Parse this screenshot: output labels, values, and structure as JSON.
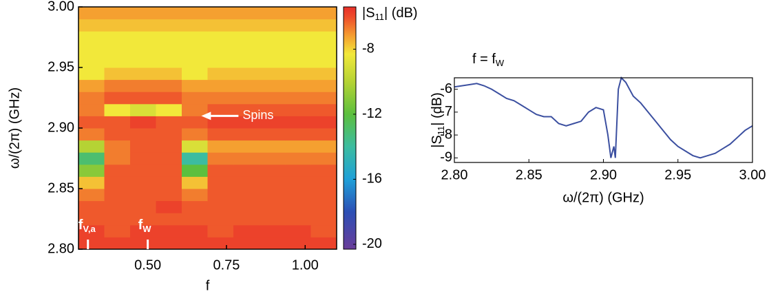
{
  "chart_data": [
    {
      "type": "heatmap",
      "xlabel": "f",
      "ylabel": "ω/(2π) (GHz)",
      "xlim": [
        0.28,
        1.1
      ],
      "ylim": [
        2.8,
        3.0
      ],
      "xticks": [
        {
          "value": 0.5,
          "label": "0.50"
        },
        {
          "value": 0.75,
          "label": "0.75"
        },
        {
          "value": 1.0,
          "label": "1.00"
        }
      ],
      "yticks": [
        {
          "value": 2.8,
          "label": "2.80"
        },
        2.85,
        {
          "value": 2.9,
          "label": "2.90"
        },
        2.95,
        {
          "value": 3.0,
          "label": "3.00"
        }
      ],
      "x_bins": [
        0.28,
        0.362,
        0.444,
        0.526,
        0.608,
        0.69,
        0.772,
        0.854,
        0.936,
        1.018,
        1.1
      ],
      "y_bins": [
        2.8,
        2.81,
        2.82,
        2.83,
        2.84,
        2.85,
        2.86,
        2.87,
        2.88,
        2.89,
        2.9,
        2.91,
        2.92,
        2.93,
        2.94,
        2.95,
        2.96,
        2.97,
        2.98,
        2.99,
        3.0
      ],
      "z": [
        [
          -5.8,
          -5.8,
          -5.8,
          -5.8,
          -5.8,
          -5.8,
          -5.8,
          -5.8,
          -5.8,
          -5.8
        ],
        [
          -5.8,
          -6.2,
          -5.8,
          -5.8,
          -5.8,
          -6.2,
          -5.8,
          -5.8,
          -5.8,
          -6.2
        ],
        [
          -6.2,
          -6.2,
          -6.2,
          -6.2,
          -6.2,
          -6.2,
          -6.2,
          -6.2,
          -6.2,
          -6.2
        ],
        [
          -6.2,
          -6.2,
          -6.2,
          -5.8,
          -6.2,
          -6.2,
          -6.2,
          -6.2,
          -6.2,
          -6.2
        ],
        [
          -6.7,
          -6.2,
          -6.2,
          -6.2,
          -6.7,
          -6.2,
          -6.2,
          -6.2,
          -6.2,
          -6.2
        ],
        [
          -7.7,
          -6.2,
          -6.2,
          -6.2,
          -7.7,
          -6.2,
          -6.2,
          -6.2,
          -6.2,
          -6.2
        ],
        [
          -11,
          -6.2,
          -6.2,
          -6.2,
          -12,
          -6.2,
          -6.2,
          -6.2,
          -6.2,
          -6.2
        ],
        [
          -13,
          -6.7,
          -6.2,
          -6.2,
          -14,
          -6.7,
          -6.7,
          -6.7,
          -6.7,
          -6.7
        ],
        [
          -10,
          -6.7,
          -6.2,
          -6.2,
          -9,
          -7.2,
          -7.2,
          -7.2,
          -7.2,
          -7.2
        ],
        [
          -6.7,
          -6.2,
          -6.2,
          -6.2,
          -6.7,
          -6.2,
          -6.2,
          -6.2,
          -6.2,
          -6.2
        ],
        [
          -6.2,
          -6.2,
          -5.8,
          -6.2,
          -6.2,
          -5.8,
          -5.8,
          -5.8,
          -5.8,
          -5.8
        ],
        [
          -6.7,
          -8.3,
          -9,
          -8.3,
          -6.7,
          -6.2,
          -6.2,
          -6.2,
          -6.2,
          -6.2
        ],
        [
          -6.7,
          -6.2,
          -6.2,
          -6.2,
          -6.7,
          -6.7,
          -6.7,
          -6.7,
          -6.7,
          -6.7
        ],
        [
          -7.2,
          -6.7,
          -6.7,
          -6.7,
          -7.2,
          -7.2,
          -7.2,
          -7.2,
          -7.2,
          -7.2
        ],
        [
          -8.3,
          -7.7,
          -7.7,
          -7.7,
          -8.3,
          -7.7,
          -7.7,
          -7.7,
          -7.7,
          -7.7
        ],
        [
          -8.3,
          -8.3,
          -8.3,
          -8.3,
          -8.3,
          -8.3,
          -8.3,
          -8.3,
          -8.3,
          -8.3
        ],
        [
          -8.3,
          -8.3,
          -8.3,
          -8.3,
          -8.3,
          -8.3,
          -8.3,
          -8.3,
          -8.3,
          -8.3
        ],
        [
          -8.3,
          -8.3,
          -8.3,
          -8.3,
          -8.3,
          -8.3,
          -8.3,
          -8.3,
          -8.3,
          -8.3
        ],
        [
          -7.7,
          -7.7,
          -7.7,
          -7.7,
          -7.7,
          -7.7,
          -7.7,
          -7.7,
          -7.7,
          -7.7
        ],
        [
          -7.2,
          -7.2,
          -7.2,
          -7.2,
          -7.2,
          -7.2,
          -7.2,
          -7.2,
          -7.2,
          -7.2
        ]
      ],
      "clim": [
        -20.3,
        -5.4
      ],
      "colorbar_ticks": [
        -8,
        -12,
        -16,
        -20
      ],
      "colorbar_label": {
        "main": "|S",
        "sub": "11",
        "end": "| (dB)"
      },
      "colormap": [
        [
          -20.3,
          "#6a3d9a"
        ],
        [
          -18,
          "#2c4fb5"
        ],
        [
          -16,
          "#1fa0d8"
        ],
        [
          -14,
          "#3cbca0"
        ],
        [
          -12,
          "#5cbf3e"
        ],
        [
          -10,
          "#b5d334"
        ],
        [
          -8.3,
          "#f2e83a"
        ],
        [
          -7.2,
          "#f5a030"
        ],
        [
          -6,
          "#ee4b2b"
        ],
        [
          -5.4,
          "#e8302a"
        ]
      ],
      "markers": [
        {
          "main": "f",
          "sub": "V,a",
          "x": 0.31
        },
        {
          "main": "f",
          "sub": "W",
          "x": 0.5
        }
      ],
      "arrow": {
        "text": "Spins",
        "x": 0.67,
        "y": 2.91
      }
    },
    {
      "type": "line",
      "title": {
        "main": "f = f",
        "sub": "W"
      },
      "xlabel": "ω/(2π) (GHz)",
      "ylabel": {
        "main": "|S",
        "sub": "11",
        "end": "| (dB)"
      },
      "xlim": [
        2.8,
        3.0
      ],
      "ylim": [
        -9.2,
        -5.5
      ],
      "xticks": [
        {
          "value": 2.8,
          "label": "2.80"
        },
        2.85,
        {
          "value": 2.9,
          "label": "2.90"
        },
        2.95,
        {
          "value": 3.0,
          "label": "3.00"
        }
      ],
      "yticks": [
        -6,
        -7,
        -8,
        -9
      ],
      "color": "#3b4fa0",
      "x": [
        2.8,
        2.805,
        2.81,
        2.815,
        2.82,
        2.825,
        2.83,
        2.835,
        2.84,
        2.845,
        2.85,
        2.855,
        2.86,
        2.865,
        2.87,
        2.875,
        2.88,
        2.885,
        2.89,
        2.895,
        2.9,
        2.903,
        2.905,
        2.907,
        2.908,
        2.91,
        2.912,
        2.915,
        2.92,
        2.925,
        2.93,
        2.935,
        2.94,
        2.945,
        2.95,
        2.955,
        2.96,
        2.965,
        2.97,
        2.975,
        2.98,
        2.985,
        2.99,
        2.995,
        3.0
      ],
      "values": [
        -5.9,
        -5.85,
        -5.8,
        -5.75,
        -5.85,
        -6.0,
        -6.2,
        -6.4,
        -6.5,
        -6.7,
        -6.9,
        -7.1,
        -7.2,
        -7.2,
        -7.5,
        -7.6,
        -7.5,
        -7.4,
        -7.0,
        -6.8,
        -6.9,
        -8.0,
        -9.0,
        -8.5,
        -9.0,
        -6.0,
        -5.5,
        -5.7,
        -6.3,
        -6.6,
        -7.0,
        -7.4,
        -7.8,
        -8.2,
        -8.5,
        -8.7,
        -8.9,
        -9.0,
        -8.9,
        -8.8,
        -8.6,
        -8.4,
        -8.1,
        -7.8,
        -7.6
      ]
    }
  ]
}
